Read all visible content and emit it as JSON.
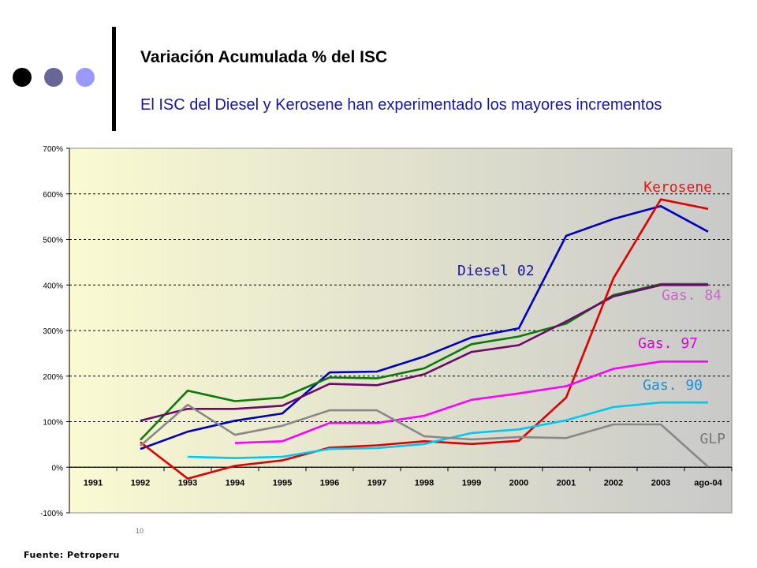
{
  "slide": {
    "title": "Variación Acumulada % del ISC",
    "subtitle": "El ISC del Diesel y Kerosene han experimentado los mayores incrementos",
    "source": "Fuente: Petroperu",
    "page_number": "10",
    "decor_colors": [
      "#000000",
      "#666699",
      "#9999ff"
    ]
  },
  "chart_data": {
    "type": "line",
    "title": "",
    "xlabel": "",
    "ylabel": "",
    "categories": [
      "1991",
      "1992",
      "1993",
      "1994",
      "1995",
      "1996",
      "1997",
      "1998",
      "1999",
      "2000",
      "2001",
      "2002",
      "2003",
      "ago-04"
    ],
    "y_ticks": [
      "700%",
      "600%",
      "500%",
      "400%",
      "300%",
      "200%",
      "100%",
      "0%",
      "-100%"
    ],
    "ylim": [
      -100,
      700
    ],
    "y_unit": "%",
    "grid": "horizontal dashed",
    "legend": "direct labels",
    "plot_background": [
      "#fafad2",
      "#c9c9c9"
    ],
    "series": [
      {
        "name": "Diesel 02",
        "color": "#0000c0",
        "label_color": "#1a1a9e",
        "values": [
          null,
          40,
          78,
          102,
          118,
          208,
          210,
          243,
          285,
          305,
          508,
          545,
          573,
          517
        ]
      },
      {
        "name": "",
        "color": "#0a7a0a",
        "values": [
          null,
          60,
          168,
          145,
          153,
          197,
          195,
          217,
          270,
          287,
          315,
          378,
          402,
          402
        ]
      },
      {
        "name": "Gas. 84",
        "color": "#6b0a6b",
        "label_color": "#cc66cc",
        "values": [
          null,
          102,
          128,
          128,
          135,
          183,
          180,
          204,
          253,
          268,
          320,
          375,
          400,
          400
        ]
      },
      {
        "name": "Kerosene",
        "color": "#e00000",
        "label_color": "#e31a1a",
        "values": [
          null,
          55,
          -25,
          3,
          15,
          43,
          48,
          57,
          51,
          58,
          153,
          415,
          588,
          567
        ]
      },
      {
        "name": "Gas. 97",
        "color": "#ff00ff",
        "label_color": "#dd00dd",
        "values": [
          null,
          null,
          null,
          53,
          57,
          97,
          97,
          113,
          148,
          162,
          178,
          216,
          232,
          232
        ]
      },
      {
        "name": "Gas. 90",
        "color": "#00c8f0",
        "label_color": "#1e90d6",
        "values": [
          null,
          null,
          23,
          20,
          23,
          40,
          42,
          51,
          75,
          83,
          103,
          132,
          142,
          142
        ]
      },
      {
        "name": "GLP",
        "color": "#888888",
        "label_color": "#777777",
        "values": [
          null,
          47,
          137,
          71,
          91,
          125,
          125,
          68,
          61,
          66,
          64,
          94,
          94,
          1
        ]
      }
    ]
  }
}
